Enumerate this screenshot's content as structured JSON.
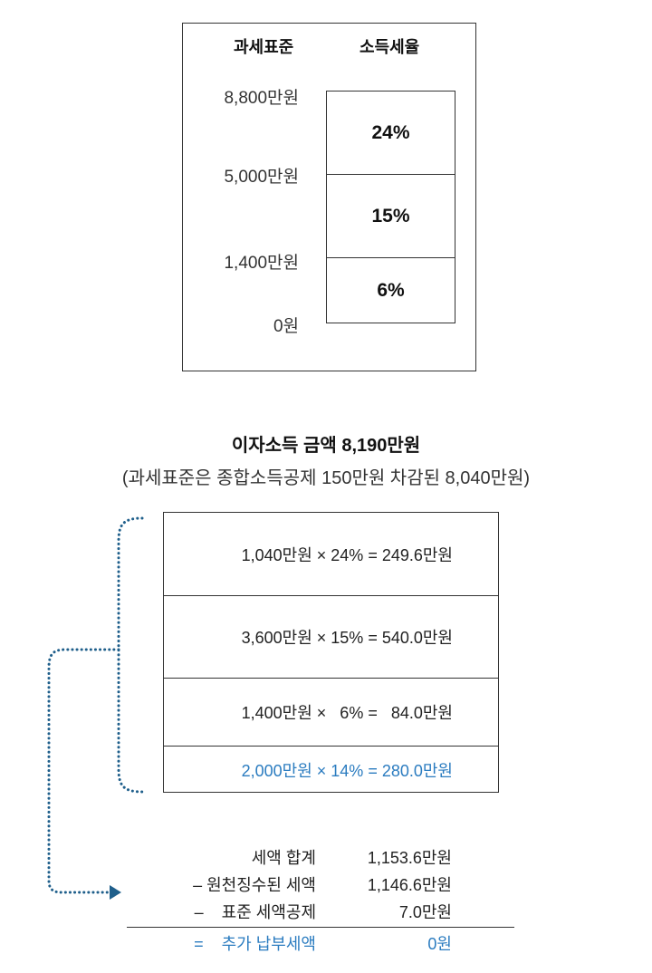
{
  "bracket_table": {
    "headers": {
      "base": "과세표준",
      "rate": "소득세율"
    },
    "thresholds": [
      "8,800만원",
      "5,000만원",
      "1,400만원",
      "0원"
    ],
    "rates": [
      "24%",
      "15%",
      "6%"
    ]
  },
  "title": "이자소득 금액 8,190만원",
  "subtitle": "(과세표준은 종합소득공제 150만원 차감된 8,040만원)",
  "calculations": [
    "1,040만원 × 24% = 249.6만원",
    "3,600만원 × 15% = 540.0만원",
    "1,400만원 ×   6% =   84.0만원",
    "2,000만원 × 14% = 280.0만원"
  ],
  "summary": [
    {
      "label": "세액 합계",
      "value": "1,153.6만원"
    },
    {
      "label": "– 원천징수된 세액",
      "value": "1,146.6만원"
    },
    {
      "label": "–    표준 세액공제",
      "value": "7.0만원"
    },
    {
      "label": "=    추가 납부세액",
      "value": "0원"
    }
  ],
  "colors": {
    "accent": "#2b7cc0",
    "dots": "#1f5f8b",
    "border": "#333333"
  }
}
